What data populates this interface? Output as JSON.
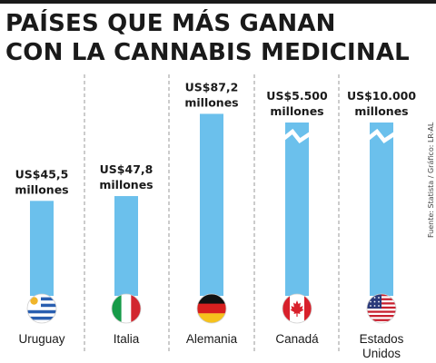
{
  "title": {
    "line1": "PAÍSES QUE MÁS GANAN",
    "line2": "CON LA CANNABIS MEDICINAL"
  },
  "source": "Fuente: Statista / Gráfico: LR-AL",
  "colors": {
    "bar": "#6bc0ec",
    "text": "#1a1a1a",
    "divider": "#9a9a9a"
  },
  "chart_data": {
    "type": "bar",
    "categories": [
      "Uruguay",
      "Italia",
      "Alemania",
      "Canadá",
      "Estados Unidos"
    ],
    "values": [
      45.5,
      47.8,
      87.2,
      5500,
      10000
    ],
    "unit": "millones de US$",
    "value_labels": [
      [
        "US$45,5",
        "millones"
      ],
      [
        "US$47,8",
        "millones"
      ],
      [
        "US$87,2",
        "millones"
      ],
      [
        "US$5.500",
        "millones"
      ],
      [
        "US$10.000",
        "millones"
      ]
    ],
    "category_labels": [
      [
        "Uruguay"
      ],
      [
        "Italia"
      ],
      [
        "Alemania"
      ],
      [
        "Canadá"
      ],
      [
        "Estados",
        "Unidos"
      ]
    ],
    "axis_break": [
      false,
      false,
      false,
      true,
      true
    ],
    "flags": [
      "uruguay-flag-icon",
      "italy-flag-icon",
      "germany-flag-icon",
      "canada-flag-icon",
      "usa-flag-icon"
    ],
    "xlabel": "",
    "ylabel": ""
  }
}
